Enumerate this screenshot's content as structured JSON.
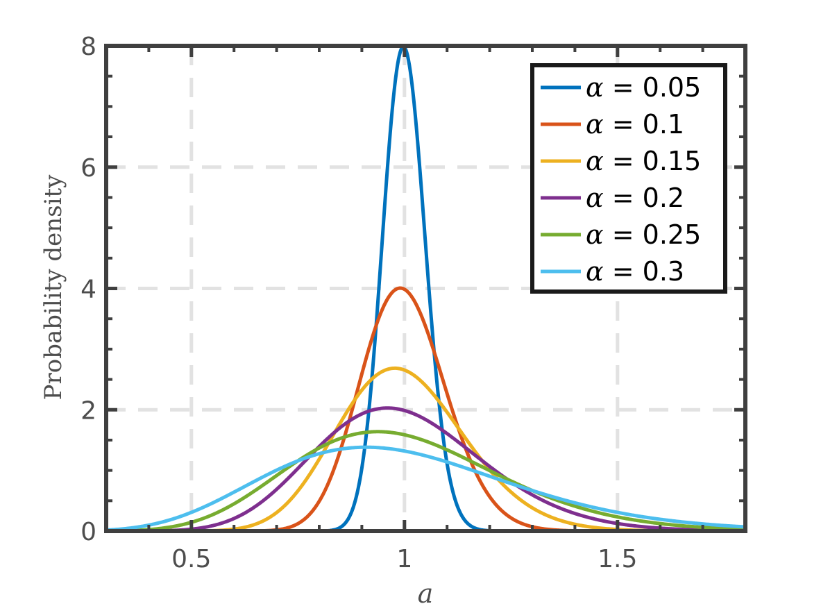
{
  "chart_data": {
    "type": "line",
    "title": "",
    "xlabel": "a",
    "ylabel": "Probability density",
    "xlim": [
      0.3,
      1.8
    ],
    "ylim": [
      0,
      8
    ],
    "xticks": [
      0.5,
      1,
      1.5
    ],
    "xtick_labels": [
      "0.5",
      "1",
      "1.5"
    ],
    "yticks": [
      0,
      2,
      4,
      6,
      8
    ],
    "ytick_labels": [
      "0",
      "2",
      "4",
      "6",
      "8"
    ],
    "grid": true,
    "legend_position": "top-right",
    "distribution": "gamma",
    "series": [
      {
        "name": "α = 0.05",
        "alpha": 0.05,
        "color": "#0072BD",
        "peak_x": 1.0,
        "peak_y": 8.0
      },
      {
        "name": "α = 0.1",
        "alpha": 0.1,
        "color": "#D95319",
        "peak_x": 0.99,
        "peak_y": 4.0
      },
      {
        "name": "α = 0.15",
        "alpha": 0.15,
        "color": "#EDB120",
        "peak_x": 0.97,
        "peak_y": 2.7
      },
      {
        "name": "α = 0.2",
        "alpha": 0.2,
        "color": "#7E2F8E",
        "peak_x": 0.94,
        "peak_y": 2.1
      },
      {
        "name": "α = 0.25",
        "alpha": 0.25,
        "color": "#77AC30",
        "peak_x": 0.91,
        "peak_y": 1.7
      },
      {
        "name": "α = 0.3",
        "alpha": 0.3,
        "color": "#4DBEEE",
        "peak_x": 0.88,
        "peak_y": 1.5
      }
    ]
  }
}
